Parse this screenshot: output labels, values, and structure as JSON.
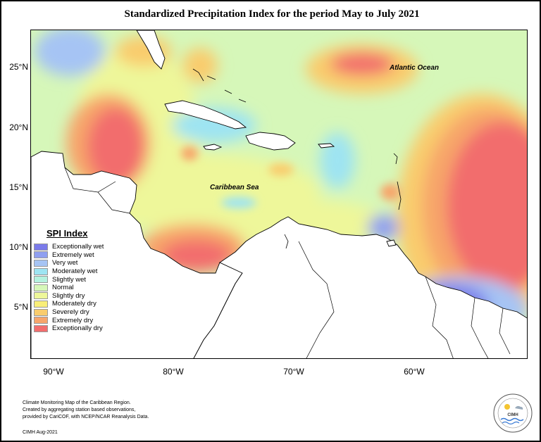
{
  "title": "Standardized Precipitation Index for the period May to July 2021",
  "latitude_labels": [
    "25°N",
    "20°N",
    "15°N",
    "10°N",
    "5°N"
  ],
  "longitude_labels": [
    "90°W",
    "80°W",
    "70°W",
    "60°W"
  ],
  "place_labels": {
    "atlantic": "Atlantic Ocean",
    "caribbean": "Caribbean Sea"
  },
  "legend": {
    "title": "SPI Index",
    "items": [
      {
        "label": "Exceptionally wet",
        "color": "#7b7bea"
      },
      {
        "label": "Extremely wet",
        "color": "#8f9ff0"
      },
      {
        "label": "Very wet",
        "color": "#a6c4f4"
      },
      {
        "label": "Moderately wet",
        "color": "#9ee4f2"
      },
      {
        "label": "Slightly wet",
        "color": "#b5f2df"
      },
      {
        "label": "Normal",
        "color": "#d6f7b9"
      },
      {
        "label": "Slightly dry",
        "color": "#eef79a"
      },
      {
        "label": "Moderately dry",
        "color": "#f9ee79"
      },
      {
        "label": "Severely dry",
        "color": "#f9cc6d"
      },
      {
        "label": "Extremely dry",
        "color": "#f7a56b"
      },
      {
        "label": "Exceptionally dry",
        "color": "#f26d6d"
      }
    ]
  },
  "footer": {
    "line1": "Climate Monitoring Map of the Caribbean Region.",
    "line2": "Created by aggregating station based observations,",
    "line3": "provided by CariCOF, with NCEP/NCAR Reanalysis Data.",
    "date": "CIMH Aug-2021"
  },
  "logo": {
    "text": "CIMH"
  }
}
